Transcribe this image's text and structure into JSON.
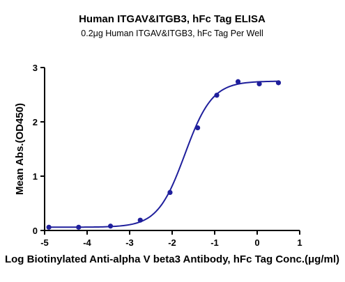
{
  "colors": {
    "series": "#1f1f9c",
    "axis": "#000000",
    "background": "#ffffff"
  },
  "chart_data": {
    "type": "scatter",
    "title": "Human ITGAV&ITGB3, hFc Tag ELISA",
    "subtitle": "0.2μg Human ITGAV&ITGB3, hFc Tag Per Well",
    "xlabel": "Log Biotinylated Anti-alpha V beta3 Antibody, hFc Tag Conc.(μg/ml)",
    "ylabel": "Mean Abs.(OD450)",
    "xlim": [
      -5,
      1
    ],
    "ylim": [
      0,
      3
    ],
    "xticks": [
      -5,
      -4,
      -3,
      -2,
      -1,
      0,
      1
    ],
    "yticks": [
      0,
      1,
      2,
      3
    ],
    "xtick_labels": [
      "-5",
      "-4",
      "-3",
      "-2",
      "-1",
      "0",
      "1"
    ],
    "ytick_labels": [
      "0",
      "1",
      "2",
      "3"
    ],
    "grid": false,
    "series": [
      {
        "x": [
          -4.9,
          -4.2,
          -3.45,
          -2.75,
          -2.05,
          -1.4,
          -0.95,
          -0.45,
          0.05,
          0.5
        ],
        "y": [
          0.06,
          0.06,
          0.08,
          0.19,
          0.7,
          1.89,
          2.49,
          2.74,
          2.7,
          2.72
        ]
      }
    ],
    "fit_curve": {
      "model": "4PL",
      "bottom": 0.06,
      "top": 2.75,
      "log_ec50": -1.7,
      "hill_slope": 1.35
    }
  }
}
